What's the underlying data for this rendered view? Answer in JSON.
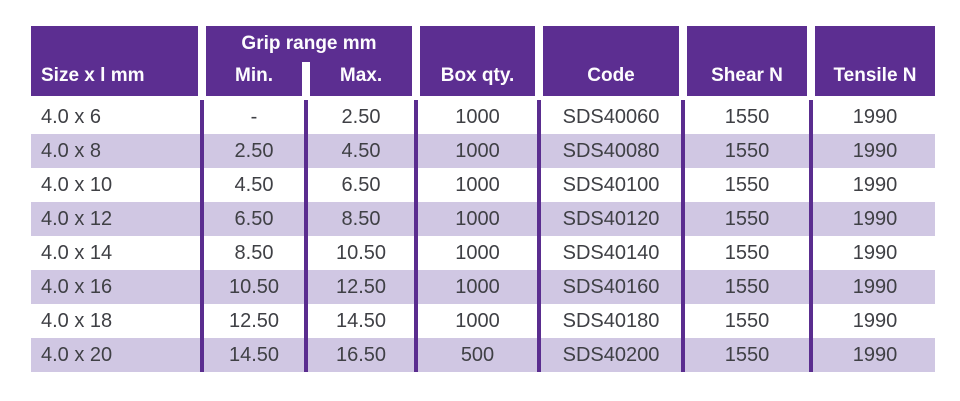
{
  "page": {
    "background": "#ffffff"
  },
  "table": {
    "headers": {
      "size": "Size x l mm",
      "grip_range": "Grip range mm",
      "min": "Min.",
      "max": "Max.",
      "box_qty": "Box qty.",
      "code": "Code",
      "shear": "Shear N",
      "tensile": "Tensile N"
    },
    "style": {
      "header_bg": "#5c2e91",
      "header_text": "#fdfcfe",
      "row_bg": "#ffffff",
      "row_alt_bg": "#d0c7e3",
      "separator": "#5a2d8f",
      "body_text": "#3f4045"
    }
  },
  "chart_data": {
    "type": "table",
    "columns": [
      "Size x l mm",
      "Grip range mm Min.",
      "Grip range mm Max.",
      "Box qty.",
      "Code",
      "Shear N",
      "Tensile N"
    ],
    "rows": [
      [
        "4.0 x 6",
        "-",
        "2.50",
        "1000",
        "SDS40060",
        "1550",
        "1990"
      ],
      [
        "4.0 x 8",
        "2.50",
        "4.50",
        "1000",
        "SDS40080",
        "1550",
        "1990"
      ],
      [
        "4.0 x 10",
        "4.50",
        "6.50",
        "1000",
        "SDS40100",
        "1550",
        "1990"
      ],
      [
        "4.0 x 12",
        "6.50",
        "8.50",
        "1000",
        "SDS40120",
        "1550",
        "1990"
      ],
      [
        "4.0 x 14",
        "8.50",
        "10.50",
        "1000",
        "SDS40140",
        "1550",
        "1990"
      ],
      [
        "4.0 x 16",
        "10.50",
        "12.50",
        "1000",
        "SDS40160",
        "1550",
        "1990"
      ],
      [
        "4.0 x 18",
        "12.50",
        "14.50",
        "1000",
        "SDS40180",
        "1550",
        "1990"
      ],
      [
        "4.0 x 20",
        "14.50",
        "16.50",
        "500",
        "SDS40200",
        "1550",
        "1990"
      ]
    ]
  }
}
